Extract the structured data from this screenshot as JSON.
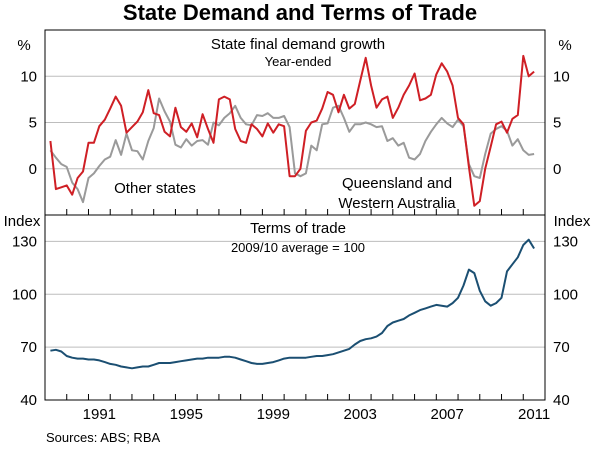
{
  "title": "State Demand and Terms of Trade",
  "source": "Sources: ABS; RBA",
  "colors": {
    "red": "#cf1f25",
    "grey": "#9a9a9a",
    "blue": "#1b4f72"
  },
  "chart_data": [
    {
      "type": "line",
      "title": "State final demand growth",
      "subtitle": "Year-ended",
      "unit_left": "%",
      "unit_right": "%",
      "ylim": [
        -5,
        15
      ],
      "yticks": [
        0,
        5,
        10
      ],
      "xlim": [
        1989.0,
        2012.0
      ],
      "series": [
        {
          "name": "Queensland and Western Australia",
          "label_lines": [
            "Queensland and",
            "Western Australia"
          ],
          "color": "#cf1f25",
          "x": [
            1989.25,
            1989.5,
            1989.75,
            1990.0,
            1990.25,
            1990.5,
            1990.75,
            1991.0,
            1991.25,
            1991.5,
            1991.75,
            1992.0,
            1992.25,
            1992.5,
            1992.75,
            1993.0,
            1993.25,
            1993.5,
            1993.75,
            1994.0,
            1994.25,
            1994.5,
            1994.75,
            1995.0,
            1995.25,
            1995.5,
            1995.75,
            1996.0,
            1996.25,
            1996.5,
            1996.75,
            1997.0,
            1997.25,
            1997.5,
            1997.75,
            1998.0,
            1998.25,
            1998.5,
            1998.75,
            1999.0,
            1999.25,
            1999.5,
            1999.75,
            2000.0,
            2000.25,
            2000.5,
            2000.75,
            2001.0,
            2001.25,
            2001.5,
            2001.75,
            2002.0,
            2002.25,
            2002.5,
            2002.75,
            2003.0,
            2003.25,
            2003.5,
            2003.75,
            2004.0,
            2004.25,
            2004.5,
            2004.75,
            2005.0,
            2005.25,
            2005.5,
            2005.75,
            2006.0,
            2006.25,
            2006.5,
            2006.75,
            2007.0,
            2007.25,
            2007.5,
            2007.75,
            2008.0,
            2008.25,
            2008.5,
            2008.75,
            2009.0,
            2009.25,
            2009.5,
            2009.75,
            2010.0,
            2010.25,
            2010.5,
            2010.75,
            2011.0,
            2011.25,
            2011.5
          ],
          "values": [
            3.0,
            -2.2,
            -2.0,
            -1.8,
            -2.8,
            -1.0,
            -0.3,
            2.8,
            2.8,
            4.6,
            5.3,
            6.5,
            7.8,
            6.8,
            3.9,
            4.5,
            5.1,
            6.1,
            8.5,
            6.0,
            5.8,
            4.0,
            3.5,
            6.6,
            4.5,
            4.0,
            4.9,
            3.4,
            5.9,
            4.3,
            2.8,
            7.5,
            7.8,
            7.5,
            4.3,
            3.0,
            2.8,
            4.8,
            4.3,
            3.5,
            4.9,
            3.9,
            4.8,
            4.6,
            -0.8,
            -0.8,
            0.0,
            4.1,
            5.0,
            5.2,
            6.5,
            8.3,
            8.0,
            6.1,
            8.0,
            6.5,
            7.0,
            9.5,
            12.0,
            9.0,
            6.6,
            7.5,
            7.8,
            5.5,
            6.6,
            8.0,
            9.0,
            10.3,
            7.4,
            7.6,
            8.0,
            10.2,
            11.4,
            10.5,
            9.0,
            5.5,
            4.8,
            0.2,
            -4.0,
            -3.5,
            0.0,
            2.4,
            4.8,
            5.1,
            3.9,
            5.4,
            5.8,
            12.2,
            10.0,
            10.5
          ]
        },
        {
          "name": "Other states",
          "label_lines": [
            "Other states"
          ],
          "color": "#9a9a9a",
          "x": [
            1989.25,
            1989.5,
            1989.75,
            1990.0,
            1990.25,
            1990.5,
            1990.75,
            1991.0,
            1991.25,
            1991.5,
            1991.75,
            1992.0,
            1992.25,
            1992.5,
            1992.75,
            1993.0,
            1993.25,
            1993.5,
            1993.75,
            1994.0,
            1994.25,
            1994.5,
            1994.75,
            1995.0,
            1995.25,
            1995.5,
            1995.75,
            1996.0,
            1996.25,
            1996.5,
            1996.75,
            1997.0,
            1997.25,
            1997.5,
            1997.75,
            1998.0,
            1998.25,
            1998.5,
            1998.75,
            1999.0,
            1999.25,
            1999.5,
            1999.75,
            2000.0,
            2000.25,
            2000.5,
            2000.75,
            2001.0,
            2001.25,
            2001.5,
            2001.75,
            2002.0,
            2002.25,
            2002.5,
            2002.75,
            2003.0,
            2003.25,
            2003.5,
            2003.75,
            2004.0,
            2004.25,
            2004.5,
            2004.75,
            2005.0,
            2005.25,
            2005.5,
            2005.75,
            2006.0,
            2006.25,
            2006.5,
            2006.75,
            2007.0,
            2007.25,
            2007.5,
            2007.75,
            2008.0,
            2008.25,
            2008.5,
            2008.75,
            2009.0,
            2009.25,
            2009.5,
            2009.75,
            2010.0,
            2010.25,
            2010.5,
            2010.75,
            2011.0,
            2011.25,
            2011.5
          ],
          "values": [
            2.0,
            1.2,
            0.5,
            0.2,
            -1.5,
            -2.2,
            -3.6,
            -1.0,
            -0.5,
            0.3,
            1.0,
            1.3,
            3.1,
            1.5,
            3.8,
            2.0,
            1.9,
            1.0,
            3.0,
            4.4,
            7.6,
            6.2,
            5.1,
            2.6,
            2.3,
            3.2,
            2.5,
            3.0,
            3.1,
            2.6,
            5.0,
            4.7,
            5.5,
            6.0,
            6.8,
            5.5,
            4.8,
            4.7,
            5.8,
            5.7,
            6.0,
            5.5,
            5.5,
            5.7,
            4.5,
            -0.5,
            -0.8,
            -0.5,
            2.5,
            2.0,
            4.8,
            4.9,
            6.6,
            6.8,
            5.5,
            4.0,
            4.8,
            4.8,
            5.0,
            4.8,
            4.5,
            4.6,
            3.0,
            3.3,
            2.5,
            2.8,
            1.2,
            1.0,
            1.6,
            3.0,
            4.0,
            4.8,
            5.5,
            4.9,
            4.5,
            5.3,
            4.6,
            0.5,
            -0.8,
            -1.0,
            1.6,
            3.8,
            4.3,
            4.6,
            4.1,
            2.5,
            3.2,
            2.0,
            1.5,
            1.6
          ]
        }
      ]
    },
    {
      "type": "line",
      "title": "Terms of trade",
      "subtitle": "2009/10 average = 100",
      "unit_left": "Index",
      "unit_right": "Index",
      "ylim": [
        40,
        145
      ],
      "yticks": [
        40,
        70,
        100,
        130
      ],
      "xlim": [
        1989.0,
        2012.0
      ],
      "xticks": [
        1991,
        1995,
        1999,
        2003,
        2007,
        2011
      ],
      "series": [
        {
          "name": "Terms of trade",
          "color": "#1b4f72",
          "x": [
            1989.25,
            1989.5,
            1989.75,
            1990.0,
            1990.25,
            1990.5,
            1990.75,
            1991.0,
            1991.25,
            1991.5,
            1991.75,
            1992.0,
            1992.25,
            1992.5,
            1992.75,
            1993.0,
            1993.25,
            1993.5,
            1993.75,
            1994.0,
            1994.25,
            1994.5,
            1994.75,
            1995.0,
            1995.25,
            1995.5,
            1995.75,
            1996.0,
            1996.25,
            1996.5,
            1996.75,
            1997.0,
            1997.25,
            1997.5,
            1997.75,
            1998.0,
            1998.25,
            1998.5,
            1998.75,
            1999.0,
            1999.25,
            1999.5,
            1999.75,
            2000.0,
            2000.25,
            2000.5,
            2000.75,
            2001.0,
            2001.25,
            2001.5,
            2001.75,
            2002.0,
            2002.25,
            2002.5,
            2002.75,
            2003.0,
            2003.25,
            2003.5,
            2003.75,
            2004.0,
            2004.25,
            2004.5,
            2004.75,
            2005.0,
            2005.25,
            2005.5,
            2005.75,
            2006.0,
            2006.25,
            2006.5,
            2006.75,
            2007.0,
            2007.25,
            2007.5,
            2007.75,
            2008.0,
            2008.25,
            2008.5,
            2008.75,
            2009.0,
            2009.25,
            2009.5,
            2009.75,
            2010.0,
            2010.25,
            2010.5,
            2010.75,
            2011.0,
            2011.25,
            2011.5
          ],
          "values": [
            68,
            68.5,
            67.5,
            65,
            64,
            63.5,
            63.5,
            63,
            63,
            62.5,
            61.5,
            60.5,
            60,
            59,
            58.5,
            58,
            58.5,
            59,
            59,
            60,
            61,
            61,
            61,
            61.5,
            62,
            62.5,
            63,
            63.5,
            63.5,
            64,
            64,
            64,
            64.5,
            64.5,
            64,
            63,
            62,
            61,
            60.5,
            60.5,
            61,
            61.5,
            62.5,
            63.5,
            64,
            64,
            64,
            64,
            64.5,
            65,
            65,
            65.5,
            66,
            67,
            68,
            69,
            71.5,
            73.5,
            74.5,
            75,
            76,
            78,
            82,
            84,
            85,
            86,
            88,
            89.5,
            91,
            92,
            93,
            94,
            93.5,
            93,
            95,
            98,
            105,
            114,
            112,
            102,
            96,
            93.5,
            95,
            98,
            113,
            117,
            121,
            128,
            131,
            126
          ]
        }
      ]
    }
  ]
}
